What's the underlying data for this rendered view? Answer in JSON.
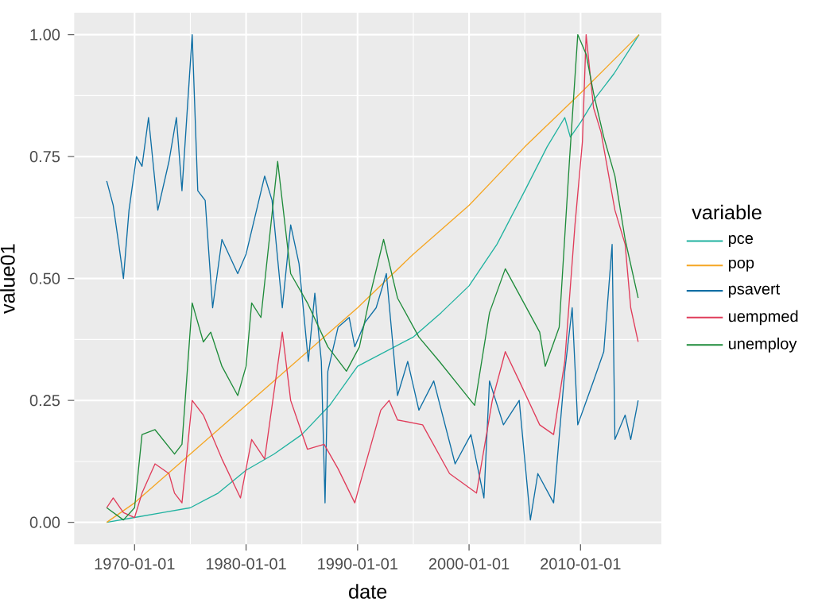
{
  "chart_data": {
    "type": "line",
    "xlabel": "date",
    "ylabel": "value01",
    "legend_title": "variable",
    "legend": "right",
    "grid": true,
    "xlim": [
      "1964-08-01",
      "2017-04-01"
    ],
    "ylim": [
      -0.045,
      1.045
    ],
    "xticks": [
      "1970-01-01",
      "1980-01-01",
      "1990-01-01",
      "2000-01-01",
      "2010-01-01"
    ],
    "yticks": [
      {
        "value": 0,
        "label": "0.00"
      },
      {
        "value": 0.25,
        "label": "0.25"
      },
      {
        "value": 0.5,
        "label": "0.50"
      },
      {
        "value": 0.75,
        "label": "0.75"
      },
      {
        "value": 1,
        "label": "1.00"
      }
    ],
    "series": [
      {
        "name": "pce",
        "color": "#20b2a0",
        "x": [
          "1967-07",
          "1970-01",
          "1972-07",
          "1975-01",
          "1977-07",
          "1980-01",
          "1982-07",
          "1985-01",
          "1987-07",
          "1990-01",
          "1992-07",
          "1995-01",
          "1997-07",
          "2000-01",
          "2002-07",
          "2005-01",
          "2007-01",
          "2008-08",
          "2009-02",
          "2010-01",
          "2011-05",
          "2013-01",
          "2015-04"
        ],
        "values": [
          0,
          0.01,
          0.02,
          0.03,
          0.06,
          0.107,
          0.14,
          0.18,
          0.24,
          0.32,
          0.35,
          0.38,
          0.43,
          0.485,
          0.57,
          0.68,
          0.77,
          0.83,
          0.79,
          0.82,
          0.87,
          0.92,
          1.0
        ]
      },
      {
        "name": "pop",
        "color": "#f5a623",
        "x": [
          "1967-07",
          "1970-01",
          "1975-01",
          "1980-01",
          "1985-01",
          "1990-01",
          "1995-01",
          "2000-01",
          "2005-01",
          "2010-01",
          "2015-04"
        ],
        "values": [
          0,
          0.04,
          0.14,
          0.24,
          0.34,
          0.44,
          0.55,
          0.65,
          0.77,
          0.88,
          1.0
        ]
      },
      {
        "name": "psavert",
        "color": "#0e6fa5",
        "x": [
          "1967-07",
          "1968-02",
          "1968-08",
          "1969-01",
          "1969-07",
          "1970-03",
          "1970-09",
          "1971-04",
          "1972-02",
          "1973-02",
          "1973-10",
          "1974-04",
          "1975-03",
          "1975-09",
          "1976-05",
          "1977-01",
          "1977-11",
          "1979-04",
          "1980-01",
          "1981-09",
          "1982-05",
          "1983-04",
          "1984-01",
          "1984-10",
          "1985-08",
          "1986-03",
          "1986-10",
          "1987-02",
          "1987-05",
          "1988-04",
          "1989-04",
          "1989-10",
          "1990-09",
          "1991-09",
          "1992-08",
          "1993-08",
          "1994-07",
          "1995-07",
          "1996-11",
          "1998-10",
          "2000-03",
          "2001-05",
          "2001-11",
          "2003-02",
          "2004-07",
          "2005-07",
          "2006-03",
          "2007-08",
          "2008-08",
          "2009-04",
          "2009-10",
          "2011-03",
          "2012-02",
          "2012-11",
          "2013-02",
          "2014-01",
          "2014-07",
          "2015-03"
        ],
        "values": [
          0.7,
          0.65,
          0.57,
          0.5,
          0.64,
          0.75,
          0.73,
          0.83,
          0.64,
          0.74,
          0.83,
          0.68,
          1.0,
          0.68,
          0.66,
          0.44,
          0.58,
          0.51,
          0.55,
          0.71,
          0.66,
          0.44,
          0.61,
          0.53,
          0.33,
          0.47,
          0.33,
          0.04,
          0.31,
          0.4,
          0.42,
          0.36,
          0.41,
          0.44,
          0.51,
          0.26,
          0.33,
          0.23,
          0.29,
          0.12,
          0.18,
          0.05,
          0.29,
          0.2,
          0.25,
          0.005,
          0.1,
          0.04,
          0.31,
          0.44,
          0.2,
          0.29,
          0.35,
          0.57,
          0.17,
          0.22,
          0.17,
          0.25
        ]
      },
      {
        "name": "uempmed",
        "color": "#e03c5a",
        "x": [
          "1967-07",
          "1968-02",
          "1969-01",
          "1970-01",
          "1970-09",
          "1971-11",
          "1973-02",
          "1973-08",
          "1974-04",
          "1975-03",
          "1976-03",
          "1977-11",
          "1979-07",
          "1980-07",
          "1981-09",
          "1983-04",
          "1984-01",
          "1985-07",
          "1987-01",
          "1988-04",
          "1989-10",
          "1990-03",
          "1992-02",
          "1992-11",
          "1993-08",
          "1995-11",
          "1998-04",
          "2000-09",
          "2002-02",
          "2003-04",
          "2004-07",
          "2006-05",
          "2007-08",
          "2008-08",
          "2009-07",
          "2010-03",
          "2010-07",
          "2011-03",
          "2011-11",
          "2013-02",
          "2014-01",
          "2014-07",
          "2015-03"
        ],
        "values": [
          0.03,
          0.05,
          0.02,
          0.01,
          0.06,
          0.12,
          0.1,
          0.06,
          0.04,
          0.25,
          0.22,
          0.13,
          0.05,
          0.17,
          0.13,
          0.39,
          0.25,
          0.15,
          0.16,
          0.11,
          0.04,
          0.075,
          0.23,
          0.25,
          0.21,
          0.2,
          0.1,
          0.06,
          0.25,
          0.35,
          0.29,
          0.2,
          0.18,
          0.33,
          0.61,
          0.78,
          1.0,
          0.85,
          0.8,
          0.64,
          0.57,
          0.44,
          0.37
        ]
      },
      {
        "name": "unemploy",
        "color": "#1e8b3a",
        "x": [
          "1967-07",
          "1969-01",
          "1970-01",
          "1970-09",
          "1971-11",
          "1973-08",
          "1974-04",
          "1975-03",
          "1976-03",
          "1976-11",
          "1977-11",
          "1979-04",
          "1980-01",
          "1980-07",
          "1981-05",
          "1982-11",
          "1984-01",
          "1985-07",
          "1987-05",
          "1989-01",
          "1990-03",
          "1991-03",
          "1992-05",
          "1993-08",
          "1995-07",
          "1997-05",
          "2000-07",
          "2001-11",
          "2003-04",
          "2006-05",
          "2006-11",
          "2008-02",
          "2009-01",
          "2009-10",
          "2010-07",
          "2011-03",
          "2012-02",
          "2013-02",
          "2014-01",
          "2015-03"
        ],
        "values": [
          0.03,
          0.005,
          0.03,
          0.18,
          0.19,
          0.14,
          0.16,
          0.45,
          0.37,
          0.39,
          0.32,
          0.26,
          0.32,
          0.45,
          0.42,
          0.74,
          0.51,
          0.45,
          0.36,
          0.31,
          0.36,
          0.47,
          0.58,
          0.46,
          0.38,
          0.33,
          0.24,
          0.43,
          0.52,
          0.39,
          0.32,
          0.4,
          0.74,
          1.0,
          0.96,
          0.88,
          0.79,
          0.71,
          0.58,
          0.46
        ]
      }
    ]
  }
}
